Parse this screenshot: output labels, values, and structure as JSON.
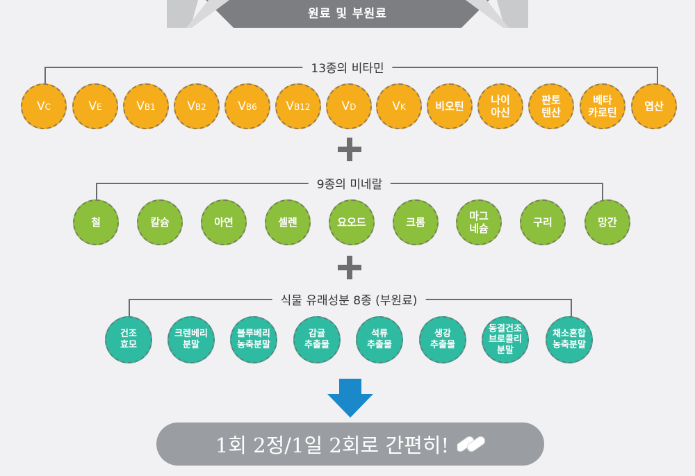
{
  "header": {
    "title": "원료 및 부원료"
  },
  "vitamins": {
    "title": "13종의 비타민",
    "items": [
      {
        "main": "V",
        "sub": "C"
      },
      {
        "main": "V",
        "sub": "E"
      },
      {
        "main": "V",
        "sub": "B1"
      },
      {
        "main": "V",
        "sub": "B2"
      },
      {
        "main": "V",
        "sub": "B6"
      },
      {
        "main": "V",
        "sub": "B12"
      },
      {
        "main": "V",
        "sub": "D"
      },
      {
        "main": "V",
        "sub": "K"
      },
      {
        "line1": "비오틴"
      },
      {
        "line1": "나이",
        "line2": "아신"
      },
      {
        "line1": "판토",
        "line2": "텐산"
      },
      {
        "line1": "베타",
        "line2": "카로틴"
      },
      {
        "line1": "엽산"
      }
    ]
  },
  "minerals": {
    "title": "9종의 미네랄",
    "items": [
      {
        "line1": "철"
      },
      {
        "line1": "칼슘"
      },
      {
        "line1": "아연"
      },
      {
        "line1": "셀렌"
      },
      {
        "line1": "요오드"
      },
      {
        "line1": "크롬"
      },
      {
        "line1": "마그",
        "line2": "네슘"
      },
      {
        "line1": "구리"
      },
      {
        "line1": "망간"
      }
    ]
  },
  "plants": {
    "title": "식물 유래성분 8종 (부원료)",
    "items": [
      {
        "line1": "건조",
        "line2": "효모"
      },
      {
        "line1": "크렌베리",
        "line2": "분말"
      },
      {
        "line1": "블루베리",
        "line2": "농축분말"
      },
      {
        "line1": "감귤",
        "line2": "추출물"
      },
      {
        "line1": "석류",
        "line2": "추출물"
      },
      {
        "line1": "생강",
        "line2": "추출물"
      },
      {
        "line1": "동결건조",
        "line2": "브로콜리",
        "line3": "분말"
      },
      {
        "line1": "채소혼합",
        "line2": "농축분말"
      }
    ]
  },
  "result": {
    "text": "1회 2정/1일 2회로 간편히!",
    "icon": "capsule-icon"
  },
  "colors": {
    "vitamin": "#f6ad1c",
    "mineral": "#8cbf3b",
    "plant": "#2fbaa2",
    "arrow": "#1a88c9",
    "banner": "#6f7074",
    "result_bg": "#9a9da1"
  }
}
